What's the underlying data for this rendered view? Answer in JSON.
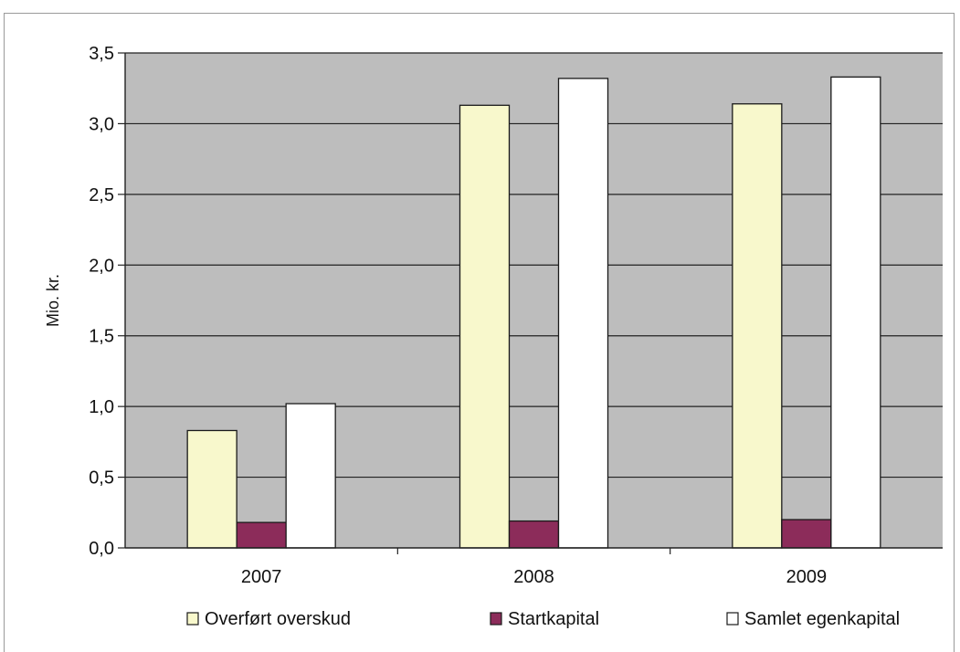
{
  "chart_data": {
    "type": "bar",
    "categories": [
      "2007",
      "2008",
      "2009"
    ],
    "series": [
      {
        "name": "Overført overskud",
        "values": [
          0.83,
          3.13,
          3.14
        ],
        "color": "#f8f8cc"
      },
      {
        "name": "Startkapital",
        "values": [
          0.18,
          0.19,
          0.2
        ],
        "color": "#8c2c5a"
      },
      {
        "name": "Samlet egenkapital",
        "values": [
          1.02,
          3.32,
          3.33
        ],
        "color": "#ffffff"
      }
    ],
    "ylabel": "Mio. kr.",
    "ylim": [
      0,
      3.5
    ],
    "yticks": [
      "0,0",
      "0,5",
      "1,0",
      "1,5",
      "2,0",
      "2,5",
      "3,0",
      "3,5"
    ],
    "grid": true,
    "legend": "bottom",
    "plot_background": "#bdbdbd"
  }
}
